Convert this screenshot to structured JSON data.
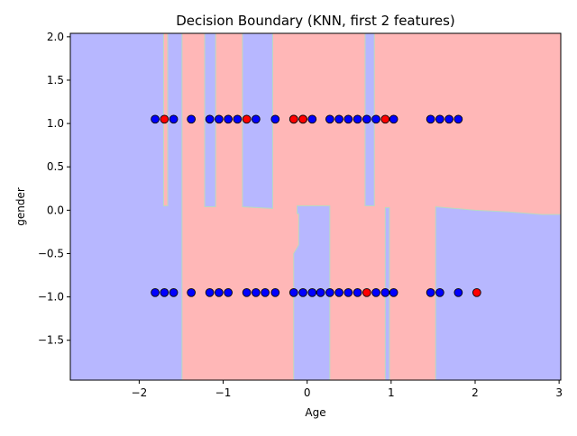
{
  "chart_data": {
    "type": "scatter",
    "title": "Decision Boundary (KNN, first 2 features)",
    "xlabel": "Age",
    "ylabel": "gender",
    "xlim": [
      -2.82,
      3.02
    ],
    "ylim": [
      -1.96,
      2.04
    ],
    "xticks": [
      -2,
      -1,
      0,
      1,
      2,
      3
    ],
    "xtick_labels": [
      "−2",
      "−1",
      "0",
      "1",
      "2",
      "3"
    ],
    "yticks": [
      -1.5,
      -1.0,
      -0.5,
      0.0,
      0.5,
      1.0,
      1.5,
      2.0
    ],
    "ytick_labels": [
      "−1.5",
      "−1.0",
      "−0.5",
      "0.0",
      "0.5",
      "1.0",
      "1.5",
      "2.0"
    ],
    "grid": false,
    "colors": {
      "region_class_0": "#b7b7ff",
      "region_class_1": "#ffb7b7",
      "point_class_0": "#0000ff",
      "point_class_1": "#ff0000",
      "point_edge": "#000000"
    },
    "regions": [
      {
        "class": 1,
        "points": [
          [
            -1.49,
            -1.96
          ],
          [
            -1.49,
            2.04
          ],
          [
            -1.22,
            2.04
          ],
          [
            -1.22,
            0.04
          ],
          [
            -1.09,
            0.04
          ],
          [
            -1.09,
            2.04
          ],
          [
            -0.77,
            2.04
          ],
          [
            -0.77,
            0.04
          ],
          [
            -0.41,
            0.02
          ],
          [
            -0.41,
            2.04
          ],
          [
            3.02,
            2.04
          ],
          [
            3.02,
            -0.05
          ],
          [
            2.8,
            -0.05
          ],
          [
            2.4,
            -0.02
          ],
          [
            2.0,
            0.0
          ],
          [
            1.53,
            0.04
          ],
          [
            1.53,
            -1.96
          ],
          [
            0.98,
            -1.96
          ],
          [
            0.98,
            0.03
          ],
          [
            0.93,
            0.03
          ],
          [
            0.93,
            -1.96
          ],
          [
            0.27,
            -1.96
          ],
          [
            0.27,
            0.05
          ],
          [
            -0.12,
            0.05
          ],
          [
            -0.12,
            -0.04
          ],
          [
            -0.1,
            -0.04
          ],
          [
            -0.1,
            -0.4
          ],
          [
            -0.16,
            -0.5
          ],
          [
            -0.16,
            -1.96
          ]
        ]
      },
      {
        "class": 1,
        "points": [
          [
            -1.71,
            2.04
          ],
          [
            -1.71,
            0.05
          ],
          [
            -1.66,
            0.05
          ],
          [
            -1.66,
            2.04
          ]
        ]
      },
      {
        "class": 0,
        "points": [
          [
            0.69,
            2.04
          ],
          [
            0.69,
            0.05
          ],
          [
            0.8,
            0.05
          ],
          [
            0.8,
            2.04
          ]
        ]
      }
    ],
    "series": [
      {
        "class": 0,
        "x": [
          -1.81,
          -1.59,
          -1.38,
          -1.16,
          -1.05,
          -0.94,
          -0.83,
          -0.61,
          -0.38,
          -0.16,
          -0.05,
          0.06,
          0.27,
          0.38,
          0.49,
          0.6,
          0.71,
          0.82,
          1.03,
          1.47,
          1.58,
          1.69,
          1.8
        ],
        "y": [
          1.05,
          1.05,
          1.05,
          1.05,
          1.05,
          1.05,
          1.05,
          1.05,
          1.05,
          1.05,
          1.05,
          1.05,
          1.05,
          1.05,
          1.05,
          1.05,
          1.05,
          1.05,
          1.05,
          1.05,
          1.05,
          1.05,
          1.05
        ]
      },
      {
        "class": 0,
        "x": [
          -1.81,
          -1.7,
          -1.59,
          -1.38,
          -1.16,
          -1.05,
          -0.94,
          -0.72,
          -0.61,
          -0.5,
          -0.38,
          -0.16,
          -0.05,
          0.06,
          0.16,
          0.27,
          0.38,
          0.49,
          0.6,
          0.82,
          0.93,
          1.03,
          1.47,
          1.58,
          1.8
        ],
        "y": [
          -0.95,
          -0.95,
          -0.95,
          -0.95,
          -0.95,
          -0.95,
          -0.95,
          -0.95,
          -0.95,
          -0.95,
          -0.95,
          -0.95,
          -0.95,
          -0.95,
          -0.95,
          -0.95,
          -0.95,
          -0.95,
          -0.95,
          -0.95,
          -0.95,
          -0.95,
          -0.95,
          -0.95,
          -0.95
        ]
      },
      {
        "class": 1,
        "x": [
          -1.7,
          -0.72,
          -0.16,
          -0.05,
          0.93,
          0.71,
          2.02
        ],
        "y": [
          1.05,
          1.05,
          1.05,
          1.05,
          1.05,
          -0.95,
          -0.95
        ]
      }
    ]
  }
}
